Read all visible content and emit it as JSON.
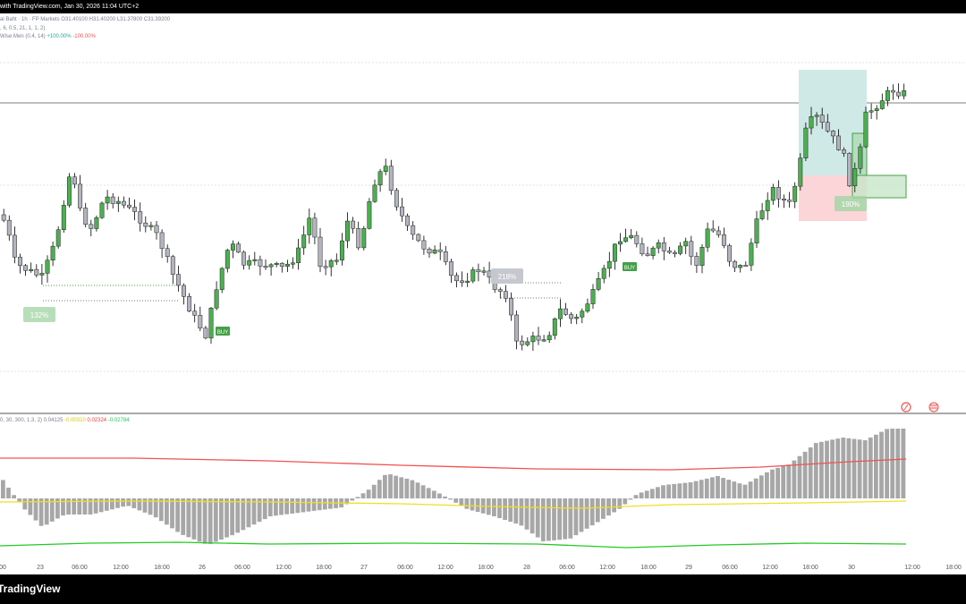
{
  "header": {
    "published": "with TradingView.com, Jan 30, 2026 11:04 UTC+2",
    "symbol_fragment": "ai Baht · 1h · FP Markets",
    "o": "31.40100",
    "h": "31.40200",
    "l": "31.37800",
    "c": "31.39200"
  },
  "legend": {
    "line1": ", 6, 0.5, 21, 1, 1, 2)",
    "line2_name": "Wise Men (0.4, 14)",
    "line2_pos": "+100.00%",
    "line2_neg": "-100.00%",
    "osc_params": "0, 30, 300, 1.3, 2)",
    "osc_v1": "0.04125",
    "osc_v2": "-0.00310",
    "osc_v3": "0.02324",
    "osc_v4": "-0.02784"
  },
  "annotations": {
    "buy_label": "BUY",
    "pct_1": "132%",
    "pct_2": "218%",
    "pct_3": "190%"
  },
  "time_axis": [
    "00",
    "23",
    "06:00",
    "12:00",
    "18:00",
    "26",
    "06:00",
    "12:00",
    "18:00",
    "27",
    "06:00",
    "12:00",
    "18:00",
    "28",
    "06:00",
    "12:00",
    "18:00",
    "29",
    "06:00",
    "12:00",
    "18:00",
    "30",
    "12:00",
    "18:00"
  ],
  "footer": {
    "brand": "TradingView"
  },
  "colors": {
    "up": "#4caf50",
    "down": "#b2b5be",
    "wick": "#000000",
    "tp_zone": "#cfe9e6",
    "sl_zone": "#fbd5d7",
    "hist": "#a7a7a7",
    "line_red": "#ef5350",
    "line_yellow": "#f0e020",
    "line_green": "#22cc22"
  },
  "icons": [
    "replay-icon",
    "flag-icon"
  ]
}
